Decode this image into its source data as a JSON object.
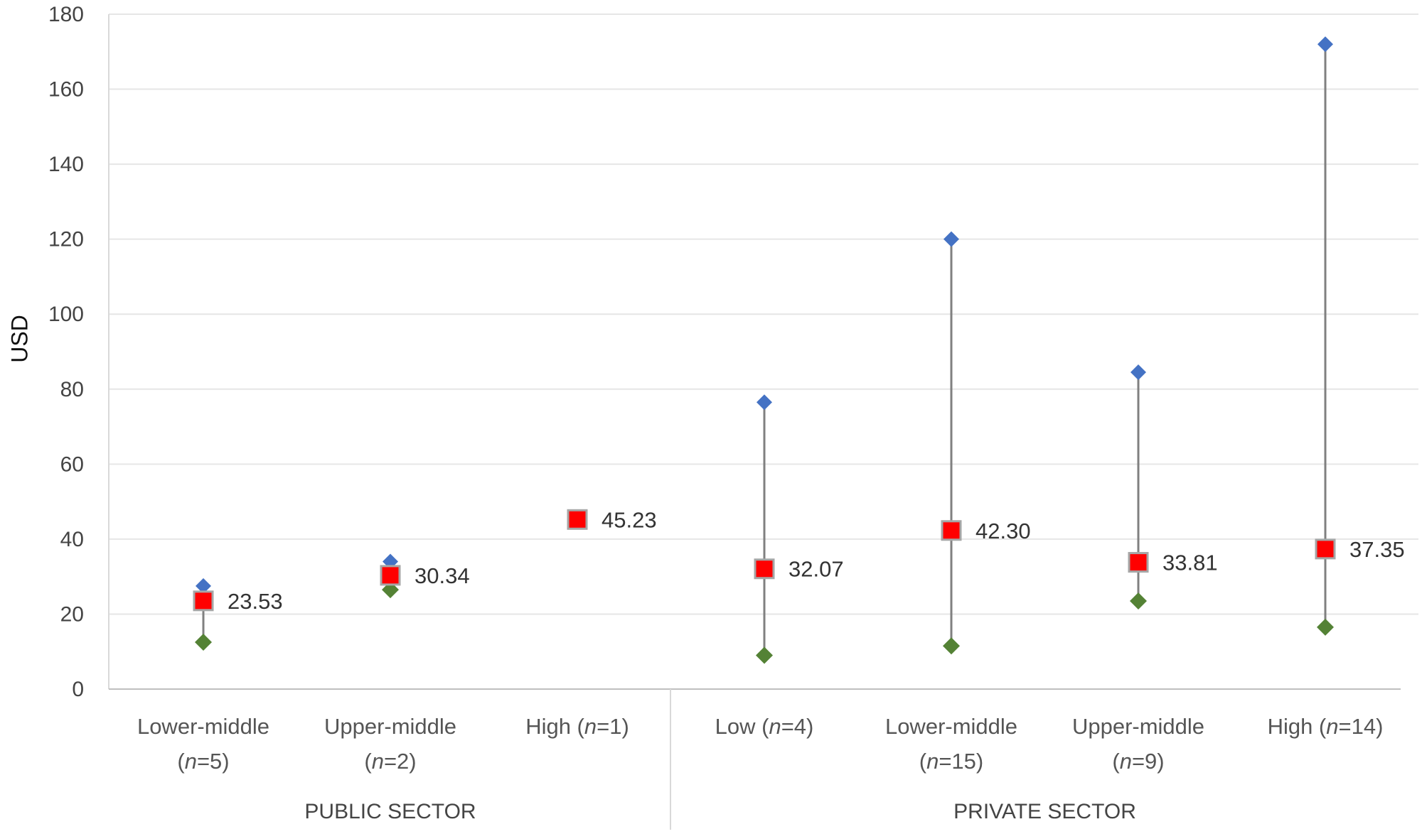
{
  "chart_data": {
    "type": "scatter",
    "ylabel": "USD",
    "xlabel": "",
    "ylim": [
      0,
      180
    ],
    "yticks": [
      0,
      20,
      40,
      60,
      80,
      100,
      120,
      140,
      160,
      180
    ],
    "grid": true,
    "colors": {
      "max": "#4472c4",
      "median": "#ff0000",
      "min": "#548235",
      "range_line": "#808080"
    },
    "groups": [
      {
        "name": "PUBLIC SECTOR",
        "categories": [
          0,
          1,
          2
        ]
      },
      {
        "name": "PRIVATE SECTOR",
        "categories": [
          3,
          4,
          5,
          6
        ]
      }
    ],
    "categories": [
      {
        "label_line1": "Lower-middle",
        "label_line2": "(n=5)",
        "label_parts": [
          [
            "(",
            false
          ],
          [
            "n",
            true
          ],
          [
            "=5)",
            false
          ]
        ]
      },
      {
        "label_line1": "Upper-middle",
        "label_line2": "(n=2)",
        "label_parts": [
          [
            "(",
            false
          ],
          [
            "n",
            true
          ],
          [
            "=2)",
            false
          ]
        ]
      },
      {
        "label_line1": "High (n=1)",
        "label_line2": "",
        "label_parts": [
          [
            "High (",
            false
          ],
          [
            "n",
            true
          ],
          [
            "=1)",
            false
          ]
        ]
      },
      {
        "label_line1": "Low (n=4)",
        "label_line2": "",
        "label_parts": [
          [
            "Low (",
            false
          ],
          [
            "n",
            true
          ],
          [
            "=4)",
            false
          ]
        ]
      },
      {
        "label_line1": "Lower-middle",
        "label_line2": "(n=15)",
        "label_parts": [
          [
            "(",
            false
          ],
          [
            "n",
            true
          ],
          [
            "=15)",
            false
          ]
        ]
      },
      {
        "label_line1": "Upper-middle",
        "label_line2": "(n=9)",
        "label_parts": [
          [
            "(",
            false
          ],
          [
            "n",
            true
          ],
          [
            "=9)",
            false
          ]
        ]
      },
      {
        "label_line1": "High (n=14)",
        "label_line2": "",
        "label_parts": [
          [
            "High (",
            false
          ],
          [
            "n",
            true
          ],
          [
            "=14)",
            false
          ]
        ]
      }
    ],
    "max": [
      27.5,
      34,
      null,
      76.5,
      120,
      84.5,
      172
    ],
    "median": [
      23.53,
      30.34,
      45.23,
      32.07,
      42.3,
      33.81,
      37.35
    ],
    "min": [
      12.5,
      26.5,
      null,
      9,
      11.5,
      23.5,
      16.5
    ],
    "median_labels": [
      "23.53",
      "30.34",
      "45.23",
      "32.07",
      "42.30",
      "33.81",
      "37.35"
    ]
  }
}
